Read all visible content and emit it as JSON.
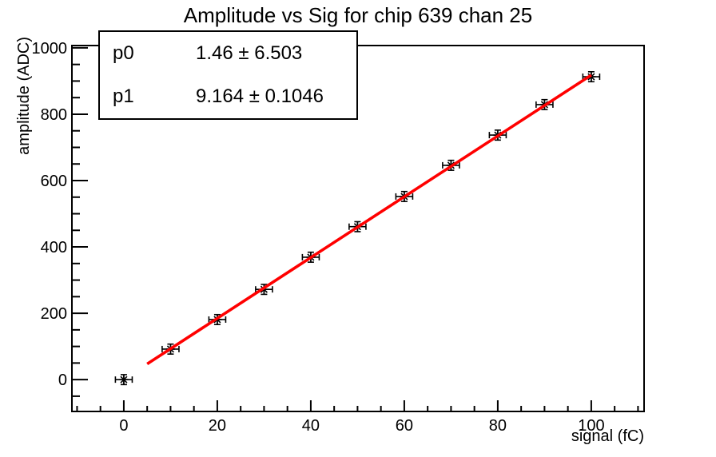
{
  "title": "Amplitude vs Sig for chip 639 chan 25",
  "stats_box": {
    "rows": [
      {
        "label": "p0",
        "value": "1.46 ± 6.503"
      },
      {
        "label": "p1",
        "value": "9.164 ± 0.1046"
      }
    ]
  },
  "chart_data": {
    "type": "scatter",
    "title": "Amplitude vs Sig for chip 639 chan 25",
    "xlabel": "signal (fC)",
    "ylabel": "amplitude (ADC)",
    "x": [
      0,
      10,
      20,
      30,
      40,
      50,
      60,
      70,
      80,
      90,
      100
    ],
    "y": [
      0,
      92,
      181,
      272,
      369,
      461,
      552,
      646,
      737,
      829,
      913
    ],
    "x_err": 1.8,
    "y_err": 15,
    "xlim": [
      -11.1,
      111.3
    ],
    "ylim": [
      -96,
      1007
    ],
    "x_major_ticks": [
      0,
      20,
      40,
      60,
      80,
      100
    ],
    "x_minor_step": 5,
    "y_major_ticks": [
      0,
      200,
      400,
      600,
      800,
      1000
    ],
    "y_minor_step": 50,
    "grid": false,
    "legend": null,
    "marker": {
      "style": "star",
      "color": "#000000"
    },
    "axis_color": "#000000",
    "background": "#ffffff",
    "fit": {
      "type": "linear",
      "p0": 1.46,
      "p0_err": 6.503,
      "p1": 9.164,
      "p1_err": 0.1046,
      "x_range": [
        5,
        100
      ],
      "color": "#ff0000",
      "line_width": 3.6
    }
  }
}
